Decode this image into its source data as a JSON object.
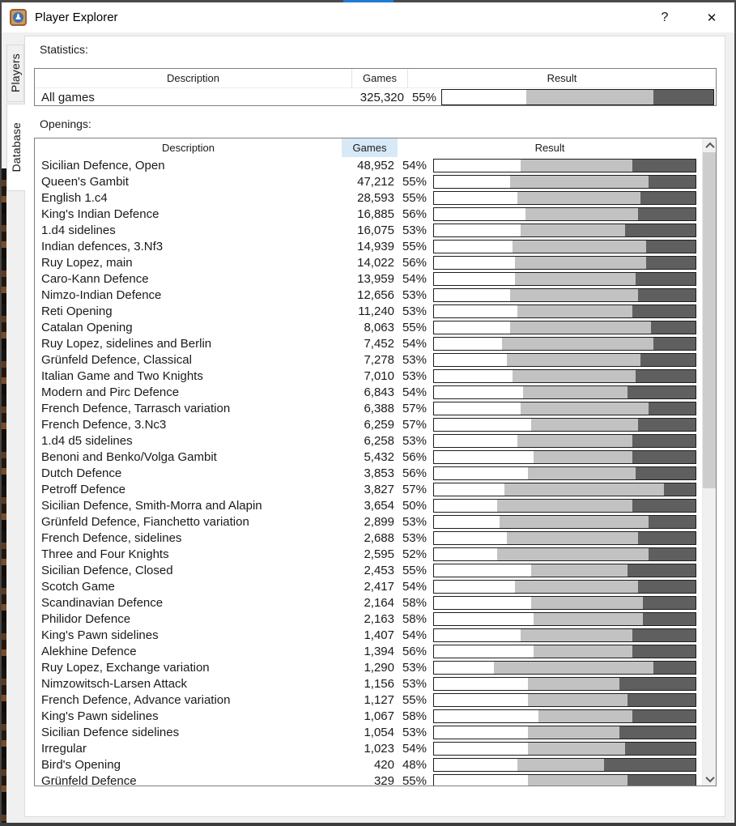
{
  "window": {
    "title": "Player Explorer",
    "help_label": "?",
    "close_label": "✕",
    "icon_glyph": "♟"
  },
  "colors": {
    "top_strip": "#4a4a4a",
    "top_strip_blue": "#1e7ad3",
    "sorted_column_highlight": "#d7e9f7",
    "bar_draw": "#c2c2c2",
    "bar_black": "#5f5f5f",
    "bar_border": "#1c1c1c"
  },
  "tabs": [
    {
      "label": "Players",
      "selected": false
    },
    {
      "label": "Database",
      "selected": true
    }
  ],
  "statistics": {
    "section_label": "Statistics:",
    "columns": [
      "Description",
      "Games",
      "Result"
    ],
    "row": {
      "description": "All games",
      "games": "325,320",
      "score": "55%",
      "white_pct": 31,
      "draw_pct": 47,
      "black_pct": 22
    }
  },
  "openings": {
    "section_label": "Openings:",
    "columns": [
      "Description",
      "Games",
      "Result"
    ],
    "sorted_column": "Games",
    "scrollbar": {
      "thumb_top_pct": 2,
      "thumb_height_pct": 52
    },
    "rows": [
      {
        "description": "Sicilian Defence, Open",
        "games": "48,952",
        "score": "54%",
        "white_pct": 33,
        "draw_pct": 43,
        "black_pct": 24
      },
      {
        "description": "Queen's Gambit",
        "games": "47,212",
        "score": "55%",
        "white_pct": 29,
        "draw_pct": 53,
        "black_pct": 18
      },
      {
        "description": "English 1.c4",
        "games": "28,593",
        "score": "55%",
        "white_pct": 32,
        "draw_pct": 47,
        "black_pct": 21
      },
      {
        "description": "King's Indian Defence",
        "games": "16,885",
        "score": "56%",
        "white_pct": 35,
        "draw_pct": 43,
        "black_pct": 22
      },
      {
        "description": "1.d4 sidelines",
        "games": "16,075",
        "score": "53%",
        "white_pct": 33,
        "draw_pct": 40,
        "black_pct": 27
      },
      {
        "description": "Indian defences, 3.Nf3",
        "games": "14,939",
        "score": "55%",
        "white_pct": 30,
        "draw_pct": 51,
        "black_pct": 19
      },
      {
        "description": "Ruy Lopez, main",
        "games": "14,022",
        "score": "56%",
        "white_pct": 31,
        "draw_pct": 50,
        "black_pct": 19
      },
      {
        "description": "Caro-Kann Defence",
        "games": "13,959",
        "score": "54%",
        "white_pct": 31,
        "draw_pct": 46,
        "black_pct": 23
      },
      {
        "description": "Nimzo-Indian Defence",
        "games": "12,656",
        "score": "53%",
        "white_pct": 29,
        "draw_pct": 49,
        "black_pct": 22
      },
      {
        "description": "Reti Opening",
        "games": "11,240",
        "score": "53%",
        "white_pct": 32,
        "draw_pct": 44,
        "black_pct": 24
      },
      {
        "description": "Catalan Opening",
        "games": "8,063",
        "score": "55%",
        "white_pct": 29,
        "draw_pct": 54,
        "black_pct": 17
      },
      {
        "description": "Ruy Lopez, sidelines and Berlin",
        "games": "7,452",
        "score": "54%",
        "white_pct": 26,
        "draw_pct": 58,
        "black_pct": 16
      },
      {
        "description": "Grünfeld Defence, Classical",
        "games": "7,278",
        "score": "53%",
        "white_pct": 28,
        "draw_pct": 51,
        "black_pct": 21
      },
      {
        "description": "Italian Game and Two Knights",
        "games": "7,010",
        "score": "53%",
        "white_pct": 30,
        "draw_pct": 47,
        "black_pct": 23
      },
      {
        "description": "Modern and Pirc Defence",
        "games": "6,843",
        "score": "54%",
        "white_pct": 34,
        "draw_pct": 40,
        "black_pct": 26
      },
      {
        "description": "French Defence, Tarrasch variation",
        "games": "6,388",
        "score": "57%",
        "white_pct": 33,
        "draw_pct": 49,
        "black_pct": 18
      },
      {
        "description": "French Defence, 3.Nc3",
        "games": "6,259",
        "score": "57%",
        "white_pct": 37,
        "draw_pct": 41,
        "black_pct": 22
      },
      {
        "description": "1.d4 d5 sidelines",
        "games": "6,258",
        "score": "53%",
        "white_pct": 32,
        "draw_pct": 44,
        "black_pct": 24
      },
      {
        "description": "Benoni and Benko/Volga Gambit",
        "games": "5,432",
        "score": "56%",
        "white_pct": 38,
        "draw_pct": 38,
        "black_pct": 24
      },
      {
        "description": "Dutch Defence",
        "games": "3,853",
        "score": "56%",
        "white_pct": 36,
        "draw_pct": 41,
        "black_pct": 23
      },
      {
        "description": "Petroff Defence",
        "games": "3,827",
        "score": "57%",
        "white_pct": 27,
        "draw_pct": 61,
        "black_pct": 12
      },
      {
        "description": "Sicilian Defence, Smith-Morra and Alapin",
        "games": "3,654",
        "score": "50%",
        "white_pct": 24,
        "draw_pct": 52,
        "black_pct": 24
      },
      {
        "description": "Grünfeld Defence, Fianchetto variation",
        "games": "2,899",
        "score": "53%",
        "white_pct": 25,
        "draw_pct": 57,
        "black_pct": 18
      },
      {
        "description": "French Defence, sidelines",
        "games": "2,688",
        "score": "53%",
        "white_pct": 28,
        "draw_pct": 50,
        "black_pct": 22
      },
      {
        "description": "Three and Four Knights",
        "games": "2,595",
        "score": "52%",
        "white_pct": 24,
        "draw_pct": 58,
        "black_pct": 18
      },
      {
        "description": "Sicilian Defence, Closed",
        "games": "2,453",
        "score": "55%",
        "white_pct": 37,
        "draw_pct": 37,
        "black_pct": 26
      },
      {
        "description": "Scotch Game",
        "games": "2,417",
        "score": "54%",
        "white_pct": 31,
        "draw_pct": 47,
        "black_pct": 22
      },
      {
        "description": "Scandinavian Defence",
        "games": "2,164",
        "score": "58%",
        "white_pct": 37,
        "draw_pct": 43,
        "black_pct": 20
      },
      {
        "description": "Philidor Defence",
        "games": "2,163",
        "score": "58%",
        "white_pct": 38,
        "draw_pct": 42,
        "black_pct": 20
      },
      {
        "description": "King's Pawn sidelines",
        "games": "1,407",
        "score": "54%",
        "white_pct": 33,
        "draw_pct": 43,
        "black_pct": 24
      },
      {
        "description": "Alekhine Defence",
        "games": "1,394",
        "score": "56%",
        "white_pct": 38,
        "draw_pct": 38,
        "black_pct": 24
      },
      {
        "description": "Ruy Lopez, Exchange variation",
        "games": "1,290",
        "score": "53%",
        "white_pct": 23,
        "draw_pct": 61,
        "black_pct": 16
      },
      {
        "description": "Nimzowitsch-Larsen Attack",
        "games": "1,156",
        "score": "53%",
        "white_pct": 36,
        "draw_pct": 35,
        "black_pct": 29
      },
      {
        "description": "French Defence, Advance variation",
        "games": "1,127",
        "score": "55%",
        "white_pct": 36,
        "draw_pct": 38,
        "black_pct": 26
      },
      {
        "description": "King's Pawn sidelines",
        "games": "1,067",
        "score": "58%",
        "white_pct": 40,
        "draw_pct": 36,
        "black_pct": 24
      },
      {
        "description": "Sicilian Defence sidelines",
        "games": "1,054",
        "score": "53%",
        "white_pct": 36,
        "draw_pct": 35,
        "black_pct": 29
      },
      {
        "description": "Irregular",
        "games": "1,023",
        "score": "54%",
        "white_pct": 36,
        "draw_pct": 37,
        "black_pct": 27
      },
      {
        "description": "Bird's Opening",
        "games": "420",
        "score": "48%",
        "white_pct": 32,
        "draw_pct": 33,
        "black_pct": 35
      },
      {
        "description": "Grünfeld Defence",
        "games": "329",
        "score": "55%",
        "white_pct": 36,
        "draw_pct": 38,
        "black_pct": 26
      }
    ]
  }
}
